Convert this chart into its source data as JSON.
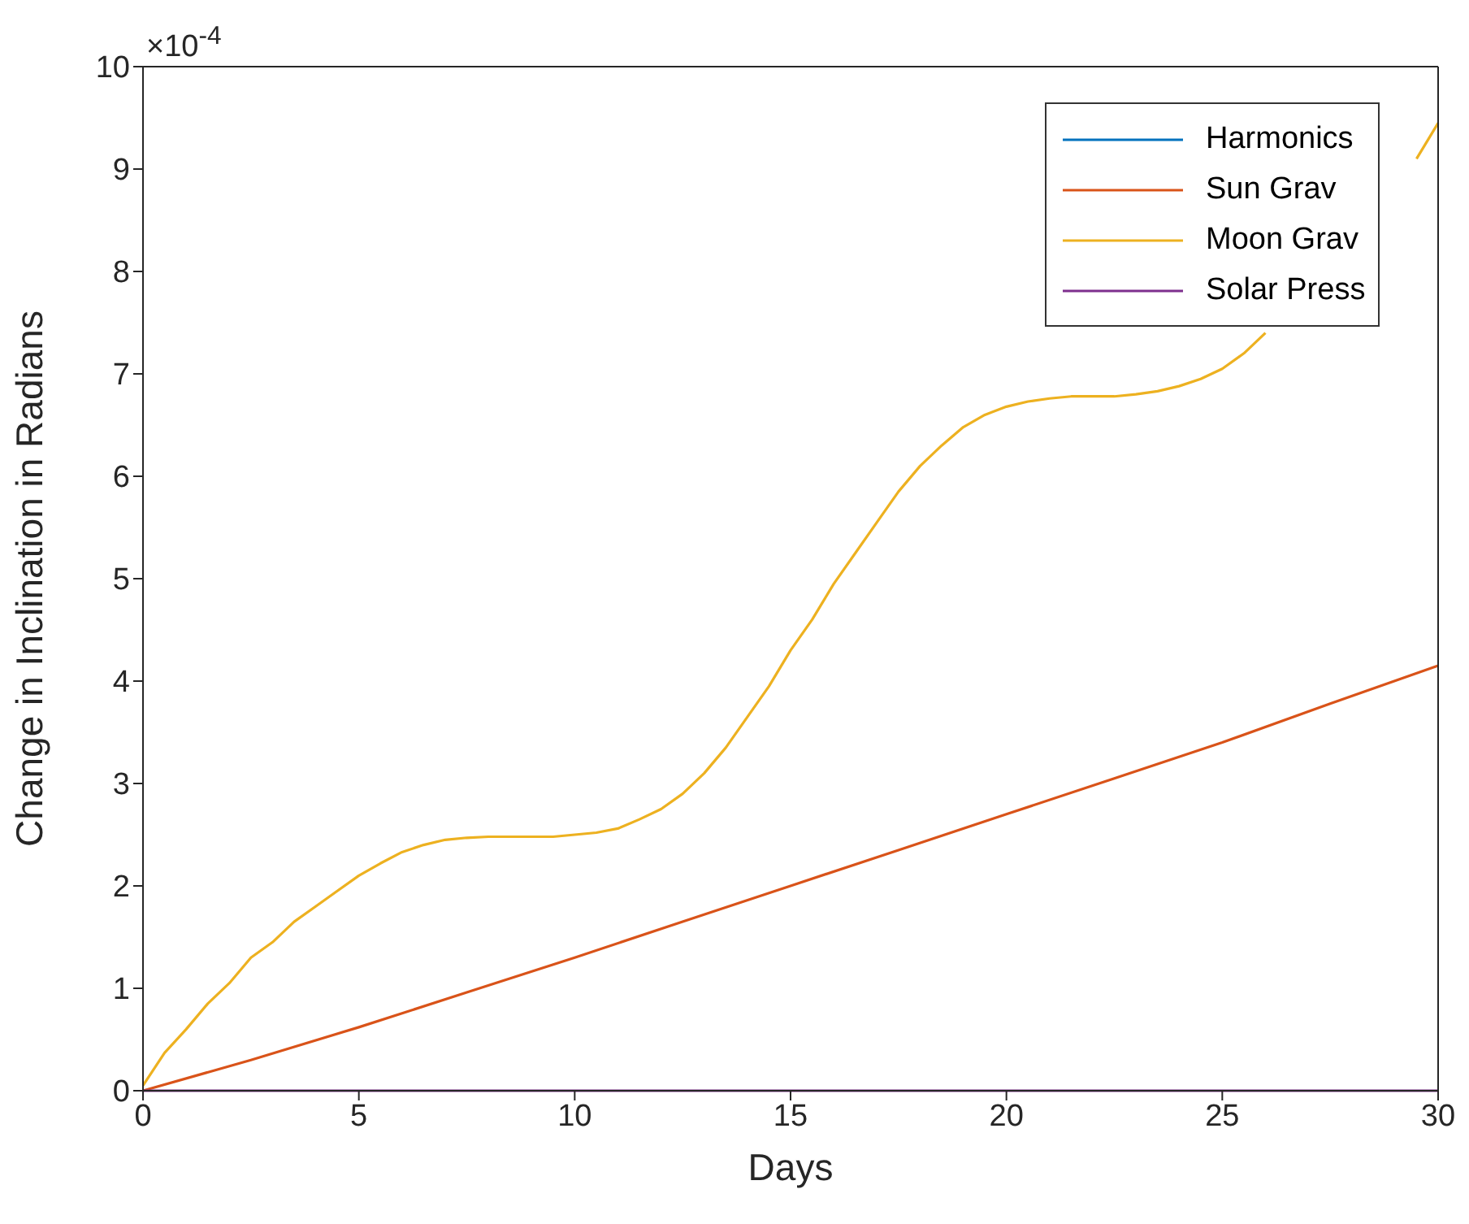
{
  "chart_data": {
    "type": "line",
    "xlabel": "Days",
    "ylabel": "Change in Inclination in Radians",
    "annotations": [
      "×10$^{-4}$"
    ],
    "xlim": [
      0,
      30
    ],
    "xticks": [
      0,
      5,
      10,
      15,
      20,
      25,
      30
    ],
    "ylim": [
      0,
      10
    ],
    "yticks": [
      0,
      1,
      2,
      3,
      4,
      5,
      6,
      7,
      8,
      9,
      10
    ],
    "grid": false,
    "legend": "top right",
    "x": [
      0,
      0.5,
      1,
      1.5,
      2,
      2.5,
      3,
      3.5,
      4,
      4.5,
      5,
      5.5,
      6,
      6.5,
      7,
      7.5,
      8,
      8.5,
      9,
      9.5,
      10,
      10.5,
      11,
      11.5,
      12,
      12.5,
      13,
      13.5,
      14,
      14.5,
      15,
      15.5,
      16,
      16.5,
      17,
      17.5,
      18,
      18.5,
      19,
      19.5,
      20,
      20.5,
      21,
      21.5,
      22,
      22.5,
      23,
      23.5,
      24,
      24.5,
      25,
      25.5,
      26,
      26.5,
      27,
      27.5,
      28,
      28.5,
      29,
      29.5,
      30
    ],
    "series": [
      {
        "name": "Harmonics",
        "color": "#0072bd",
        "values": [
          null,
          null,
          null,
          null,
          null,
          null,
          null,
          null,
          null,
          null,
          null,
          null,
          null,
          null,
          null,
          null,
          null,
          null,
          null,
          null,
          null,
          null,
          null,
          null,
          null,
          null,
          null,
          null,
          null,
          null,
          null,
          null,
          null,
          null,
          null,
          null,
          null,
          null,
          null,
          null,
          null,
          null,
          null,
          null,
          null,
          null,
          null,
          null,
          null,
          null,
          null,
          null,
          null,
          null,
          null,
          null,
          null,
          null,
          null,
          null,
          null
        ]
      },
      {
        "name": "Sun Grav",
        "color": "#d95319",
        "x": [
          0,
          2.5,
          5,
          7.5,
          10,
          12.5,
          15,
          17.5,
          20,
          22.5,
          25,
          27.5,
          30
        ],
        "values": [
          0,
          0.3,
          0.62,
          0.96,
          1.3,
          1.65,
          2.0,
          2.35,
          2.7,
          3.05,
          3.4,
          3.78,
          4.15
        ]
      },
      {
        "name": "Moon Grav",
        "color": "#edb120",
        "values": [
          0.05,
          0.37,
          0.6,
          0.85,
          1.05,
          1.3,
          1.45,
          1.65,
          1.8,
          1.95,
          2.1,
          2.22,
          2.33,
          2.4,
          2.45,
          2.47,
          2.48,
          2.48,
          2.48,
          2.48,
          2.5,
          2.52,
          2.56,
          2.65,
          2.75,
          2.9,
          3.1,
          3.35,
          3.65,
          3.95,
          4.3,
          4.6,
          4.95,
          5.25,
          5.55,
          5.85,
          6.1,
          6.3,
          6.48,
          6.6,
          6.68,
          6.73,
          6.76,
          6.78,
          6.78,
          6.78,
          6.8,
          6.83,
          6.88,
          6.95,
          7.05,
          7.2,
          7.4,
          null,
          null,
          null,
          null,
          null,
          null,
          9.1,
          9.45
        ]
      },
      {
        "name": "Solar Press",
        "color": "#7e2f8e",
        "x": [
          0,
          30
        ],
        "values": [
          0,
          0
        ]
      }
    ]
  }
}
